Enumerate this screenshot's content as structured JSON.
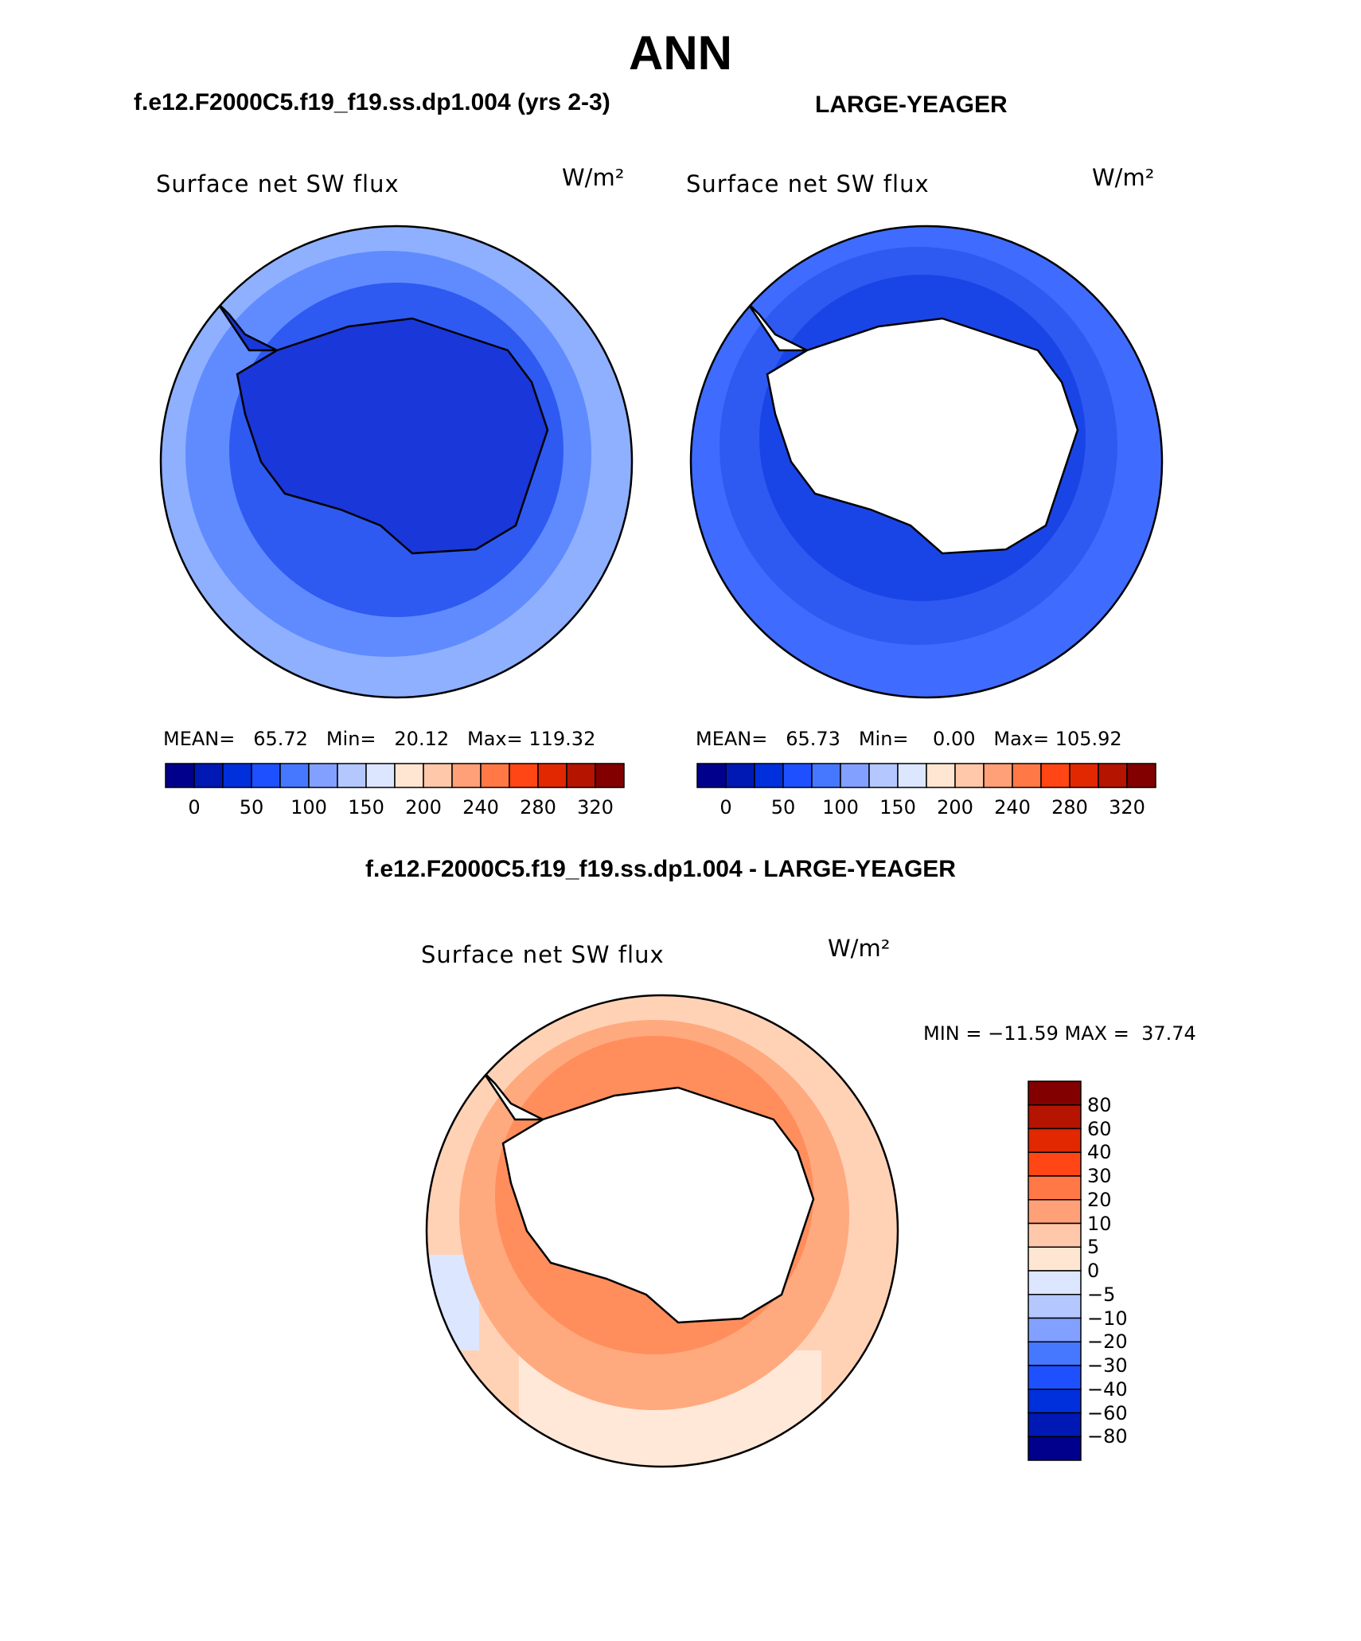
{
  "title": "ANN",
  "panels": [
    {
      "case_name": "f.e12.F2000C5.f19_f19.ss.dp1.004 (yrs 2-3)",
      "field_label": "Surface net SW flux",
      "units": "W/m²",
      "stats": {
        "mean": "65.72",
        "min": "20.12",
        "max": "119.32"
      },
      "stats_text": "MEAN=   65.72   Min=   20.12   Max= 119.32",
      "antarctic_fill": "#1a37d9"
    },
    {
      "case_name": "LARGE-YEAGER",
      "field_label": "Surface net SW flux",
      "units": "W/m²",
      "stats": {
        "mean": "65.73",
        "min": "0.00",
        "max": "105.92"
      },
      "stats_text": "MEAN=   65.73   Min=    0.00   Max= 105.92",
      "antarctic_fill": "#ffffff"
    }
  ],
  "abs_colorbar": {
    "colors": [
      "#00008c",
      "#0018b4",
      "#0030dc",
      "#1e50ff",
      "#4678ff",
      "#82a0ff",
      "#b4c8ff",
      "#dce6ff",
      "#ffe6d2",
      "#ffc8aa",
      "#ffa078",
      "#ff7846",
      "#ff4614",
      "#e12800",
      "#b41400",
      "#820000"
    ],
    "tick_labels": [
      "0",
      "50",
      "100",
      "150",
      "200",
      "240",
      "280",
      "320"
    ]
  },
  "difference": {
    "title": "f.e12.F2000C5.f19_f19.ss.dp1.004 - LARGE-YEAGER",
    "field_label": "Surface net SW flux",
    "units": "W/m²",
    "min": "-11.59",
    "max": "37.74",
    "minmax_text": "MIN = −11.59 MAX =  37.74",
    "colorbar": {
      "colors": [
        "#820000",
        "#b41400",
        "#e12800",
        "#ff4614",
        "#ff7846",
        "#ffa078",
        "#ffc8aa",
        "#ffe6d2",
        "#dce6ff",
        "#b4c8ff",
        "#82a0ff",
        "#4678ff",
        "#1e50ff",
        "#0030dc",
        "#0018b4",
        "#00008c"
      ],
      "tick_labels": [
        "80",
        "60",
        "40",
        "30",
        "20",
        "10",
        "5",
        "0",
        "−5",
        "−10",
        "−20",
        "−30",
        "−40",
        "−60",
        "−80"
      ]
    }
  },
  "colors": {
    "deep_blue": "#1a37d9",
    "mid_blue": "#2e5af2",
    "light_blue": "#5f8bff",
    "pale_blue": "#8fb0ff",
    "salmon": "#ffa97e",
    "orange": "#ff7b4a",
    "peach": "#ffd2b6",
    "cream": "#ffe8d8"
  }
}
